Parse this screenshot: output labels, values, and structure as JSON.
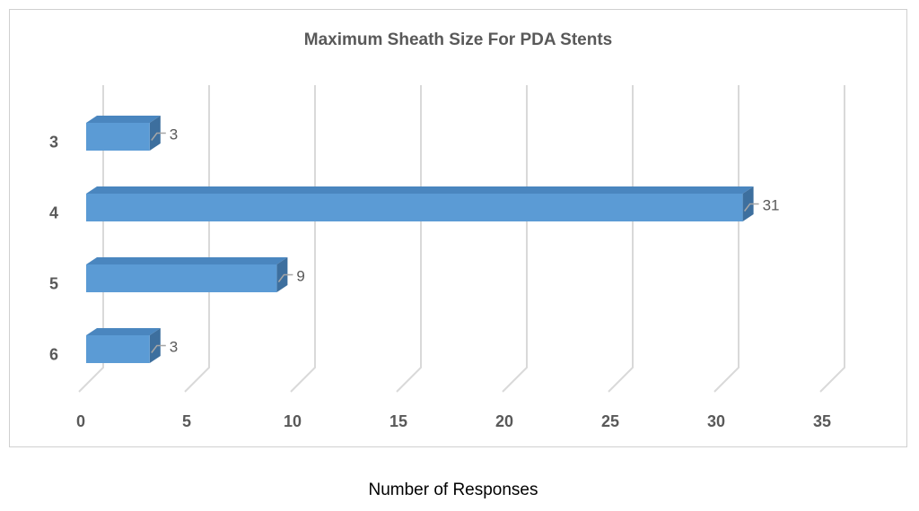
{
  "chart_data": {
    "type": "bar",
    "orientation": "horizontal",
    "style": "3d",
    "title": "Maximum Sheath Size For PDA  Stents",
    "xlabel": "Number of Responses",
    "ylabel": "",
    "categories": [
      "3",
      "4",
      "5",
      "6"
    ],
    "values": [
      3,
      31,
      9,
      3
    ],
    "data_labels": [
      "3",
      "31",
      "9",
      "3"
    ],
    "xlim": [
      0,
      35
    ],
    "xticks": [
      "0",
      "5",
      "10",
      "15",
      "20",
      "25",
      "30",
      "35"
    ],
    "grid": true,
    "legend": "none",
    "colors": {
      "bar_front": "#5b9bd5",
      "bar_top": "#4a86bf",
      "bar_side": "#3d6f9e",
      "grid": "#d9d9d9",
      "text": "#595959"
    }
  }
}
